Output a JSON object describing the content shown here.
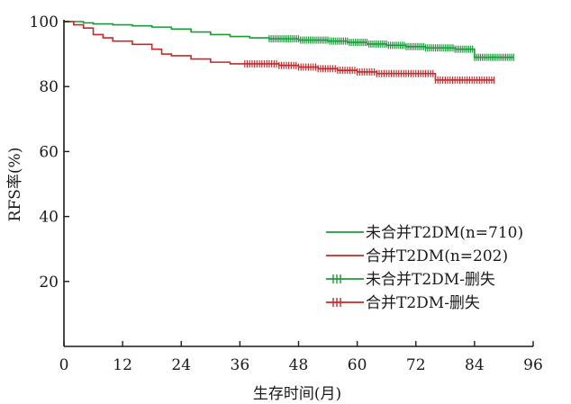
{
  "chart_data": {
    "type": "line",
    "title": "",
    "xlabel": "生存时间(月)",
    "ylabel": "RFS率(%)",
    "xlim": [
      0,
      96
    ],
    "ylim": [
      0,
      100
    ],
    "x_ticks": [
      "0",
      "12",
      "24",
      "36",
      "48",
      "60",
      "72",
      "84",
      "96"
    ],
    "y_ticks": [
      "20",
      "40",
      "60",
      "80",
      "100"
    ],
    "grid": false,
    "legend_position": "bottom-right",
    "colors": {
      "green": "#1a9a3a",
      "red": "#c8282a",
      "axis": "#1a1a1a"
    },
    "legend": [
      {
        "label": "未合并T2DM(n=710)",
        "kind": "line",
        "color": "green"
      },
      {
        "label": "合并T2DM(n=202)",
        "kind": "line",
        "color": "red"
      },
      {
        "label": "未合并T2DM-删失",
        "kind": "censor",
        "color": "green"
      },
      {
        "label": "合并T2DM-删失",
        "kind": "censor",
        "color": "red"
      }
    ],
    "series": [
      {
        "name": "未合并T2DM(n=710)",
        "color": "green",
        "x": [
          0,
          4,
          6,
          10,
          14,
          18,
          22,
          26,
          30,
          34,
          38,
          42,
          48,
          54,
          58,
          62,
          66,
          70,
          74,
          80,
          84,
          92
        ],
        "y": [
          100,
          99.6,
          99.3,
          99,
          98.7,
          98.3,
          97.7,
          96.8,
          96,
          95.4,
          95,
          94.7,
          94.3,
          94,
          93.6,
          93.1,
          92.7,
          92.3,
          91.9,
          91.5,
          89,
          89
        ]
      },
      {
        "name": "合并T2DM(n=202)",
        "color": "red",
        "x": [
          0,
          2,
          4,
          6,
          8,
          10,
          14,
          18,
          20,
          22,
          26,
          30,
          34,
          40,
          44,
          48,
          52,
          56,
          60,
          64,
          70,
          74,
          76,
          88
        ],
        "y": [
          100,
          99,
          98,
          96,
          95,
          94,
          93,
          91.5,
          90,
          89.5,
          88.5,
          87.5,
          87,
          87,
          86.5,
          86,
          85.5,
          85,
          84.5,
          84,
          84,
          84,
          82,
          82
        ]
      }
    ],
    "censor_series": [
      {
        "name": "未合并T2DM-删失",
        "color": "green",
        "x_start": 42,
        "x_end": 92,
        "interval": 0.4
      },
      {
        "name": "合并T2DM-删失",
        "color": "red",
        "x_start": 37,
        "x_end": 88,
        "interval": 0.5
      }
    ]
  }
}
